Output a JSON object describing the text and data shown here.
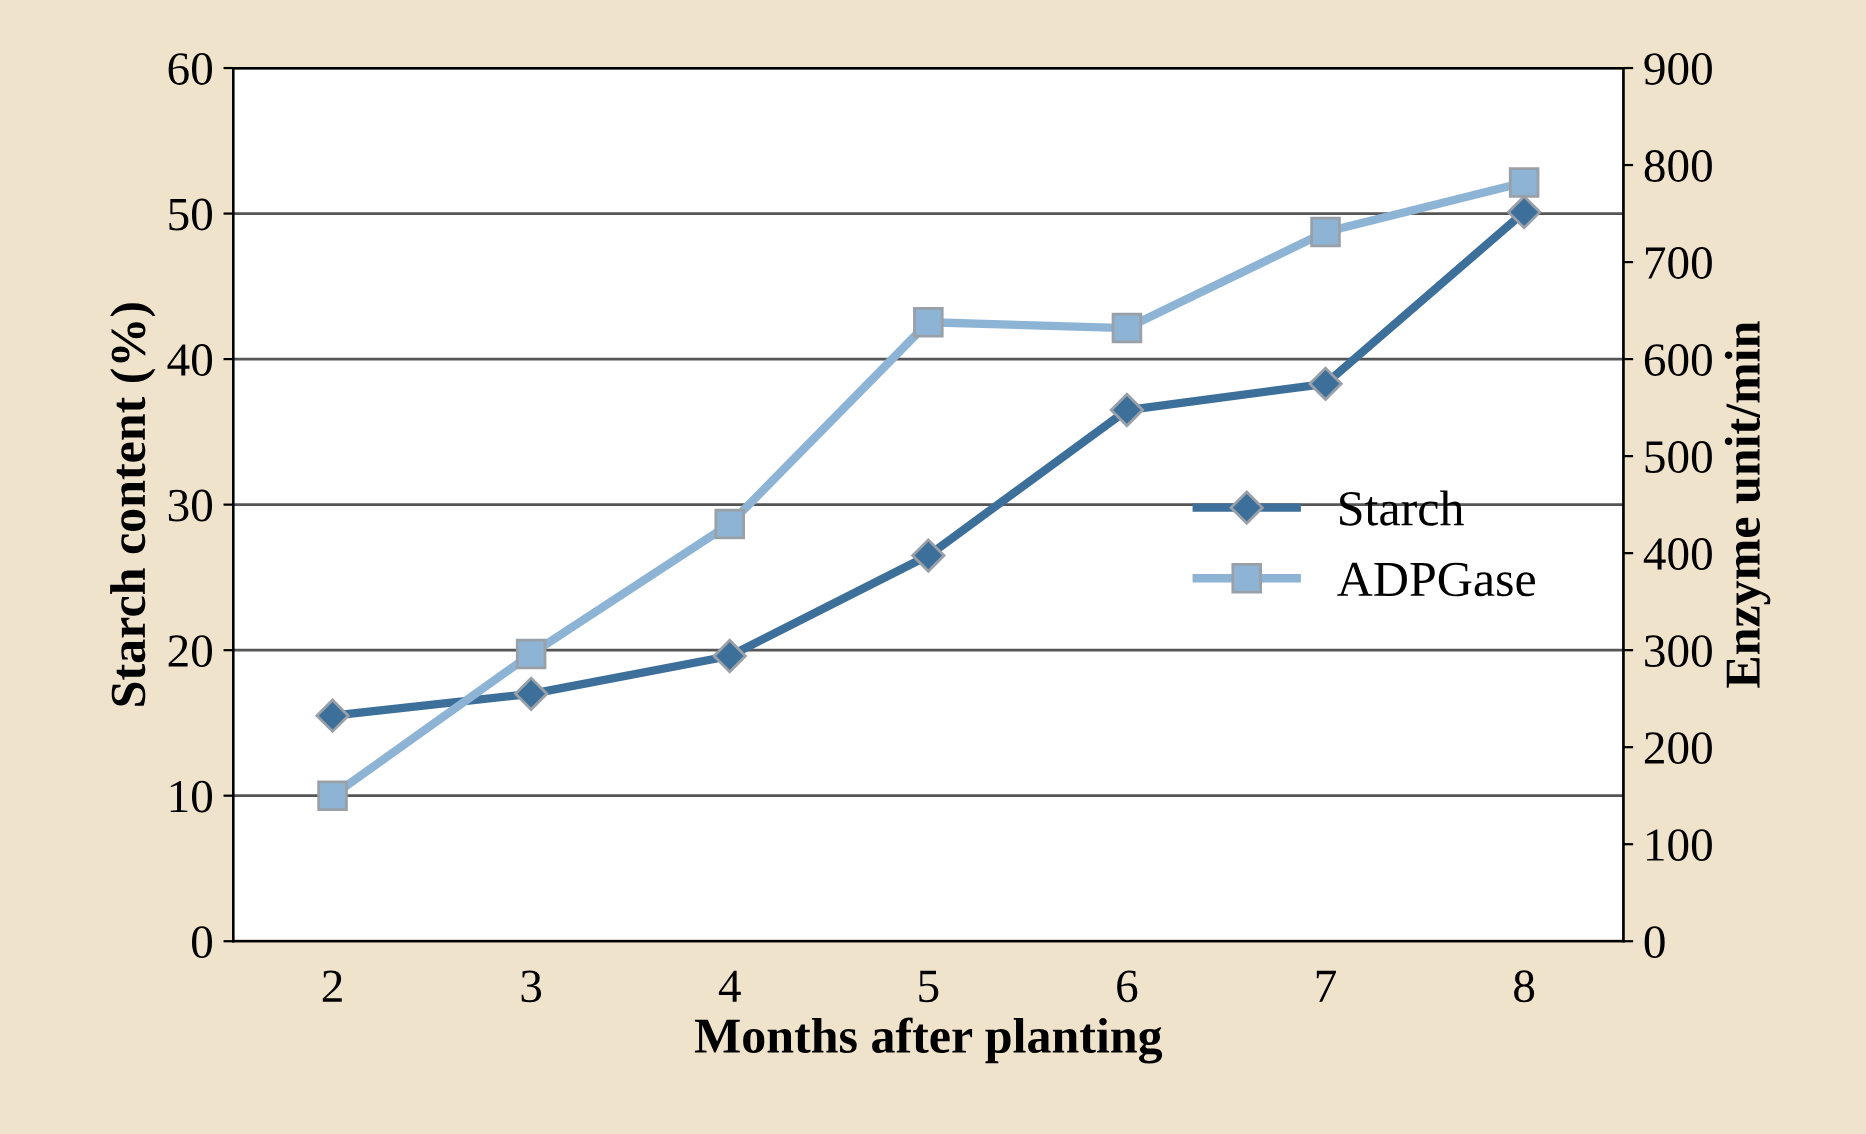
{
  "chart_data": {
    "type": "line",
    "xlabel": "Months after planting",
    "ylabel": "Starch content (%)",
    "y2label": "Enzyme unit/min",
    "categories": [
      "2",
      "3",
      "4",
      "5",
      "6",
      "7",
      "8"
    ],
    "series": [
      {
        "name": "Starch",
        "color": "#3d6f9b",
        "marker": "diamond",
        "values": [
          15.5,
          17.0,
          19.6,
          26.5,
          36.5,
          38.3,
          50.1
        ]
      },
      {
        "name": "ADPGase",
        "color": "#8db4d4",
        "marker": "square",
        "axis": "y2",
        "values": [
          150,
          296,
          430,
          638,
          632,
          731,
          782
        ]
      }
    ],
    "ylim": [
      0,
      60
    ],
    "yticks": [
      0,
      10,
      20,
      30,
      40,
      50,
      60
    ],
    "y2lim": [
      0,
      900
    ],
    "y2ticks": [
      0,
      100,
      200,
      300,
      400,
      500,
      600,
      700,
      800,
      900
    ],
    "grid": "y",
    "legend": "center right"
  }
}
